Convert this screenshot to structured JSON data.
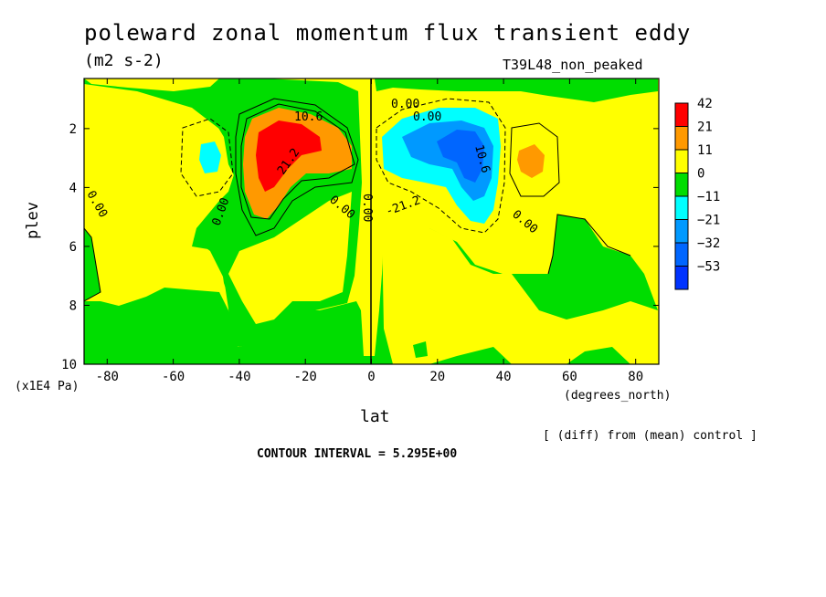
{
  "title": "poleward zonal momentum flux transient eddy",
  "units": "(m2 s-2)",
  "experiment": "T39L48_non_peaked",
  "ylabel": "plev",
  "ylabel_units": "(x1E4 Pa)",
  "xlabel": "lat",
  "xlabel_units": "(degrees_north)",
  "diff_note": "[ (diff) from (mean) control ]",
  "contour_interval": "CONTOUR INTERVAL = 5.295E+00",
  "chart_data": {
    "type": "heatmap",
    "title": "poleward zonal momentum flux transient eddy",
    "xlabel": "lat",
    "ylabel": "plev",
    "xlim": [
      -87,
      87
    ],
    "ylim": [
      10,
      0.3
    ],
    "x_ticks": [
      "-80",
      "-60",
      "-40",
      "-20",
      "0",
      "20",
      "40",
      "60",
      "80"
    ],
    "x_tick_values": [
      -80,
      -60,
      -40,
      -20,
      0,
      20,
      40,
      60,
      80
    ],
    "y_ticks": [
      "2",
      "4",
      "6",
      "8",
      "10"
    ],
    "y_tick_values": [
      2,
      4,
      6,
      8,
      10
    ],
    "legend": {
      "labels": [
        "42",
        "21",
        "11",
        "0",
        "−11",
        "−21",
        "−32",
        "−53"
      ],
      "colors": [
        "#ff0000",
        "#ff9900",
        "#ffff00",
        "#00dd00",
        "#00ffff",
        "#0099ff",
        "#0066ff",
        "#0033ff"
      ]
    },
    "contour_labels": [
      "10.6",
      "21.2",
      "0.00",
      "0.00",
      "0.00",
      "0.00",
      "0.00",
      "0.00",
      "10.6",
      "-21.2",
      "0.00"
    ],
    "colors": {
      "background": "#ffff00",
      "negative_small": "#00dd00",
      "positive_mid": "#ff9900",
      "positive_high": "#ff0000",
      "negative_mid": "#00ffff",
      "negative_high": "#0099ff",
      "negative_max": "#0066ff"
    }
  }
}
